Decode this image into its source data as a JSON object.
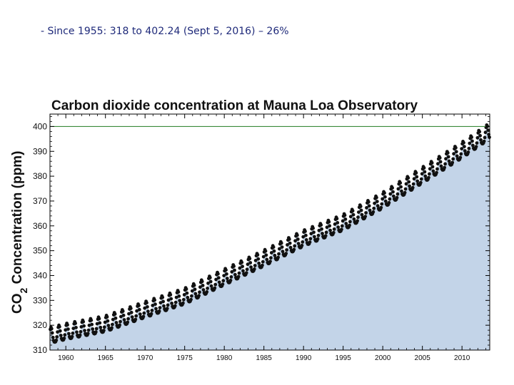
{
  "caption": "- Since 1955: 318 to 402.24 (Sept 5, 2016) – 26%",
  "chart_data": {
    "type": "line",
    "title": "Carbon dioxide concentration at Mauna Loa Observatory",
    "ylabel_main": "CO",
    "ylabel_sub": "2",
    "ylabel_rest": " Concentration (ppm)",
    "xlabel": "",
    "xlim": [
      1958,
      2013.5
    ],
    "ylim": [
      310,
      405
    ],
    "xticks": [
      1960,
      1965,
      1970,
      1975,
      1980,
      1985,
      1990,
      1995,
      2000,
      2005,
      2010
    ],
    "yticks": [
      310,
      320,
      330,
      340,
      350,
      360,
      370,
      380,
      390,
      400
    ],
    "reference_line": 400,
    "seasonal_amplitude_ppm": 3.2,
    "annual_trend": {
      "x": [
        1958,
        1960,
        1965,
        1970,
        1975,
        1980,
        1985,
        1990,
        1995,
        2000,
        2005,
        2010,
        2013
      ],
      "y": [
        315.3,
        316.9,
        320.0,
        325.7,
        331.1,
        338.8,
        346.4,
        354.4,
        360.8,
        369.7,
        379.8,
        389.9,
        396.5
      ]
    },
    "colors": {
      "fill": "#c3d4e8",
      "points": "#111111",
      "reference_line": "#3a8a3a",
      "frame": "#000000"
    },
    "grid": false
  }
}
